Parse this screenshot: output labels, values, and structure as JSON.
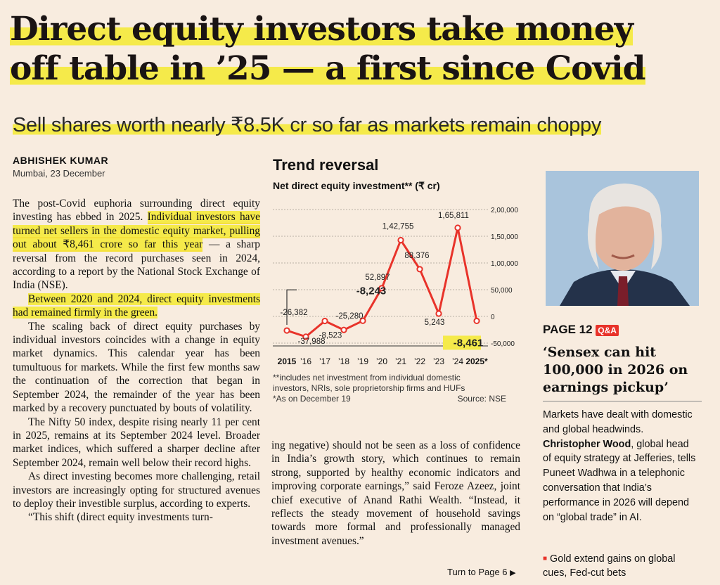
{
  "headline": {
    "line1": "Direct equity investors take money",
    "line2": "off table in ’25 — a first since Covid"
  },
  "deck": "Sell shares worth nearly ₹8.5K cr so far as markets remain choppy",
  "byline": {
    "author": "ABHISHEK KUMAR",
    "dateline": "Mumbai, 23 December"
  },
  "article": {
    "col1": [
      "The post-Covid euphoria surrounding direct",
      "equity investing has ebbed in 2025.",
      "Individual investors have turned net sellers in the domestic equity market, pulling out about ₹8,461 crore so far this year",
      " — a sharp reversal from the record purchases seen in 2024, according to a report by the National Stock Exchange of India (NSE).",
      "Between 2020 and 2024, direct equity investments had remained firmly in the green.",
      "The scaling back of direct equity purchases by individual investors coincides with a change in equity market dynamics. This calendar year has been tumultuous for markets. While the first few months saw the continuation of the correction that began in September 2024, the remainder of the year has been marked by a recovery punctuated by bouts of volatility.",
      "The Nifty 50 index, despite rising nearly 11 per cent in 2025, remains at its September 2024 level. Broader market indices, which suffered a sharper decline after September 2024, remain well below their record highs.",
      "As direct investing becomes more challenging, retail investors are increasingly opting for structured avenues to deploy their investible surplus, according to experts.",
      "“This shift (direct equity investments turn-"
    ],
    "col2": "ing negative) should not be seen as a loss of confidence in India’s growth story, which continues to remain strong, supported by healthy economic indicators and improving corporate earnings,” said Feroze Azeez, joint chief executive of Anand Rathi Wealth. “Instead, it reflects the steady movement of household savings towards more formal and professionally managed investment avenues.”",
    "turn": "Turn to Page 6"
  },
  "chart_data": {
    "type": "line",
    "title": "Trend reversal",
    "subtitle": "Net direct equity investment** (₹ cr)",
    "categories": [
      "2015",
      "’16",
      "’17",
      "’18",
      "’19",
      "’20",
      "’21",
      "’22",
      "’23",
      "’24",
      "2025*"
    ],
    "values": [
      -26382,
      -37988,
      -8523,
      -25280,
      -8243,
      52897,
      142755,
      88376,
      5243,
      165811,
      -8461
    ],
    "data_labels": [
      "-26,382",
      "-37,988",
      "-8,523",
      "-25,280",
      "-8,243",
      "52,897",
      "1,42,755",
      "88,376",
      "5,243",
      "1,65,811",
      "-8,461"
    ],
    "y_ticks": [
      "2,00,000",
      "1,50,000",
      "1,00,000",
      "50,000",
      "0",
      "-50,000"
    ],
    "y_tick_values": [
      200000,
      150000,
      100000,
      50000,
      0,
      -50000
    ],
    "ylim": [
      -50000,
      200000
    ],
    "grid": "horizontal",
    "line_color": "#e8332a",
    "highlight_color": "#f5ea4a",
    "footnotes": [
      "**includes net investment from individual domestic",
      "investors, NRIs, sole proprietorship firms and HUFs",
      "*As on December 19"
    ],
    "source": "Source: NSE"
  },
  "sidebar": {
    "page_label": "PAGE 12",
    "qa_label": "Q&A",
    "title": "‘Sensex can hit 100,000 in 2026 on earnings pickup’",
    "body_pre": "Markets have dealt with domestic and global headwinds. ",
    "person": "Christopher Wood",
    "body_mid": ", global head of equity strategy at Jefferies, tells ",
    "reporter": "Puneet Wadhwa",
    "body_post": " in a telephonic conversation that India’s performance in 2026 will depend on “global trade” in AI.",
    "teaser": "Gold extend gains on global cues, Fed-cut bets"
  }
}
